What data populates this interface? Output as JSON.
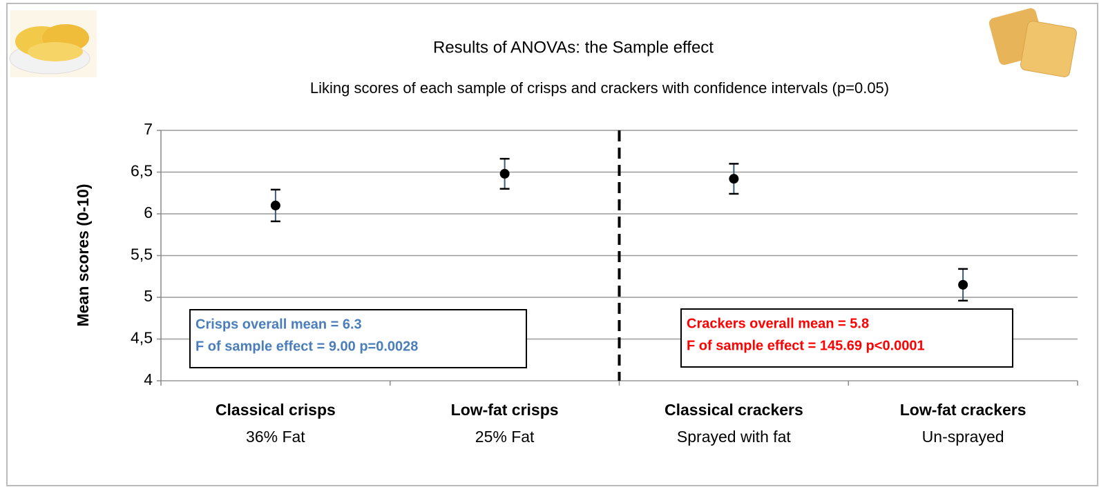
{
  "chart_data": {
    "type": "errorbar",
    "title": "Results of ANOVAs: the Sample effect",
    "subtitle": "Liking scores of each sample of crisps and crackers with confidence intervals (p=0.05)",
    "y_label": "Mean scores (0-10)",
    "categories": [
      "Classical crisps",
      "Low-fat crisps",
      "Classical crackers",
      "Low-fat crackers"
    ],
    "sublabels": [
      "36% Fat",
      "25% Fat",
      "Sprayed with fat",
      "Un-sprayed"
    ],
    "values": [
      6.1,
      6.48,
      6.42,
      5.15
    ],
    "errors": [
      0.19,
      0.18,
      0.18,
      0.19
    ],
    "color": "#000000",
    "ylim": [
      4,
      7
    ],
    "yticks": [
      4,
      {
        "value": 4.5,
        "label": "4,5"
      },
      5,
      {
        "value": 5.5,
        "label": "5,5"
      },
      6,
      {
        "value": 6.5,
        "label": "6,5"
      },
      7
    ],
    "grid": true,
    "annotations": [
      {
        "lines": [
          "Crisps overall mean = 6.3",
          "F of sample effect = 9.00  p=0.0028"
        ],
        "color": "#4a7ebb"
      },
      {
        "lines": [
          "Crackers overall mean = 5.8",
          "F of sample effect = 145.69  p<0.0001"
        ],
        "color": "#ff0000"
      }
    ]
  }
}
